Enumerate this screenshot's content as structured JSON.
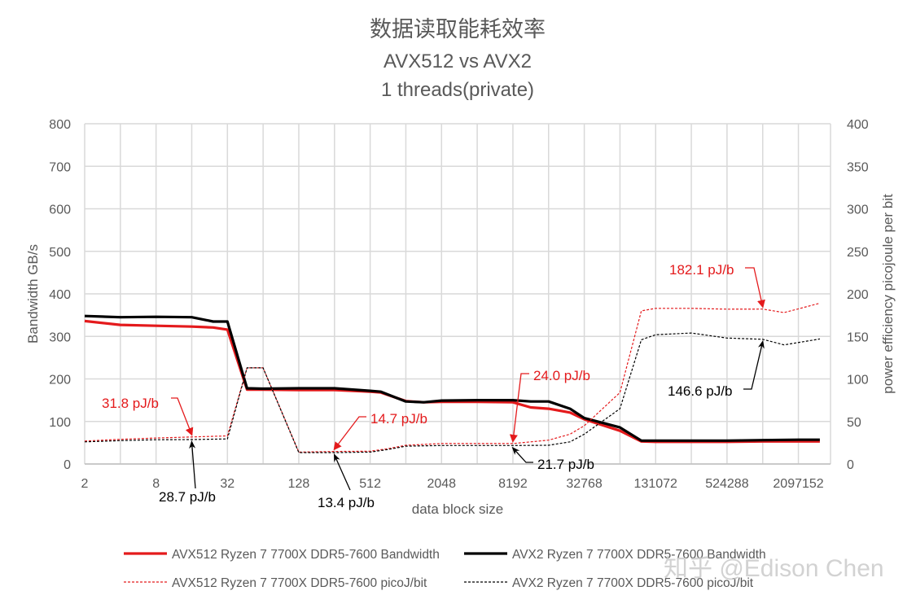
{
  "chart_data": {
    "type": "line",
    "title": [
      "数据读取能耗效率",
      "AVX512 vs AVX2",
      "1 threads(private)"
    ],
    "xlabel": "data block size",
    "ylabel": "Bandwidth GB/s",
    "y2label": "power efficiency picojoule per bit",
    "x_scale": "log2",
    "x_tick_labels": [
      "2",
      "8",
      "32",
      "128",
      "512",
      "2048",
      "8192",
      "32768",
      "131072",
      "524288",
      "2097152"
    ],
    "x_tick_log2": [
      1,
      3,
      5,
      7,
      9,
      11,
      13,
      15,
      17,
      19,
      21
    ],
    "xlim_log2": [
      1,
      21.9
    ],
    "ylim": [
      0,
      800
    ],
    "y_ticks": [
      0,
      100,
      200,
      300,
      400,
      500,
      600,
      700,
      800
    ],
    "y2lim": [
      0,
      400
    ],
    "y2_ticks": [
      0,
      50,
      100,
      150,
      200,
      250,
      300,
      350,
      400
    ],
    "grid": true,
    "legend_position": "bottom",
    "series": [
      {
        "name": "AVX512 Ryzen 7 7700X DDR5-7600 Bandwidth",
        "axis": "left",
        "color": "#e41a1c",
        "style": "solid",
        "x_log2": [
          1,
          2,
          3,
          4,
          4.6,
          5,
          5.55,
          6,
          7,
          8,
          9,
          9.3,
          10,
          10.5,
          11,
          12,
          13,
          13.5,
          14,
          14.6,
          15,
          16,
          16.6,
          17,
          18,
          19,
          20,
          21,
          21.6
        ],
        "values": [
          336,
          327,
          325,
          323,
          321,
          316,
          175,
          175,
          174,
          174,
          170,
          168,
          148,
          145,
          146,
          146,
          145,
          133,
          130,
          121,
          105,
          78,
          53,
          52,
          52,
          52,
          53,
          53,
          53
        ]
      },
      {
        "name": "AVX2 Ryzen 7 7700X DDR5-7600 Bandwidth",
        "axis": "left",
        "color": "#000000",
        "style": "solid",
        "x_log2": [
          1,
          2,
          3,
          4,
          4.6,
          5,
          5.55,
          6,
          7,
          8,
          9,
          9.3,
          10,
          10.5,
          11,
          12,
          13,
          13.5,
          14,
          14.6,
          15,
          16,
          16.6,
          17,
          18,
          19,
          20,
          21,
          21.6
        ],
        "values": [
          348,
          345,
          346,
          345,
          335,
          335,
          178,
          177,
          178,
          178,
          172,
          170,
          147,
          145,
          149,
          150,
          150,
          147,
          147,
          130,
          108,
          86,
          55,
          55,
          55,
          55,
          56,
          57,
          57
        ]
      },
      {
        "name": "AVX512 Ryzen 7 7700X DDR5-7600 picoJ/bit",
        "axis": "right",
        "color": "#e41a1c",
        "style": "dashed",
        "x_log2": [
          1,
          2,
          3,
          4,
          5,
          5.55,
          6,
          7,
          8,
          9,
          9.5,
          10,
          11,
          12,
          13,
          14,
          14.6,
          15,
          16,
          16.6,
          17,
          18,
          19,
          20,
          20.6,
          21.6
        ],
        "values": [
          27,
          29,
          30.5,
          31.8,
          33,
          113,
          113,
          14,
          14.7,
          15,
          18,
          22,
          24,
          24,
          24.0,
          28,
          35,
          45,
          84,
          180,
          183,
          183,
          182,
          182.1,
          178,
          189
        ]
      },
      {
        "name": "AVX2 Ryzen 7 7700X DDR5-7600 picoJ/bit",
        "axis": "right",
        "color": "#000000",
        "style": "dashed",
        "x_log2": [
          1,
          2,
          3,
          4,
          5,
          5.55,
          6,
          7,
          8,
          9,
          9.5,
          10,
          11,
          12,
          13,
          14,
          14.6,
          15,
          16,
          16.6,
          17,
          18,
          19,
          20,
          20.6,
          21.6
        ],
        "values": [
          26,
          27.5,
          28.5,
          28.7,
          29.5,
          113,
          113,
          13.4,
          13.4,
          14,
          17,
          21,
          21.7,
          21.7,
          21.7,
          22,
          26,
          35,
          65,
          146,
          152,
          154,
          148,
          146.6,
          140,
          147
        ]
      }
    ],
    "annotations": [
      {
        "text": "31.8 pJ/b",
        "color": "#e41a1c",
        "x_log2": 4,
        "value": 31.8
      },
      {
        "text": "28.7 pJ/b",
        "color": "#000000",
        "x_log2": 4,
        "value": 28.7
      },
      {
        "text": "14.7 pJ/b",
        "color": "#e41a1c",
        "x_log2": 8,
        "value": 14.7
      },
      {
        "text": "13.4 pJ/b",
        "color": "#000000",
        "x_log2": 8,
        "value": 13.4
      },
      {
        "text": "24.0 pJ/b",
        "color": "#e41a1c",
        "x_log2": 13,
        "value": 24.0
      },
      {
        "text": "21.7 pJ/b",
        "color": "#000000",
        "x_log2": 13,
        "value": 21.7
      },
      {
        "text": "182.1 pJ/b",
        "color": "#e41a1c",
        "x_log2": 20,
        "value": 182.1
      },
      {
        "text": "146.6 pJ/b",
        "color": "#000000",
        "x_log2": 20,
        "value": 146.6
      }
    ]
  },
  "watermark": "知乎 @Edison Chen"
}
